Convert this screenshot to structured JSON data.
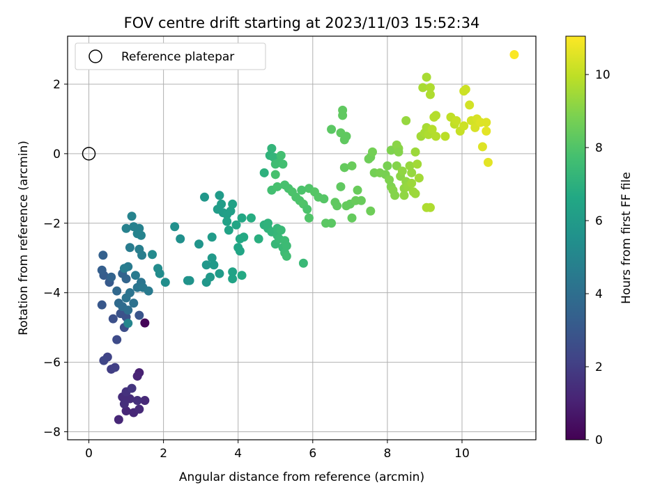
{
  "chart_data": {
    "type": "scatter",
    "title": "FOV centre drift starting at 2023/11/03 15:52:34",
    "xlabel": "Angular distance from reference (arcmin)",
    "ylabel": "Rotation from reference (arcmin)",
    "xlim": [
      -0.57,
      11.98
    ],
    "ylim": [
      -8.23,
      3.38
    ],
    "xticks": [
      0,
      2,
      4,
      6,
      8,
      10
    ],
    "yticks": [
      -8,
      -6,
      -4,
      -2,
      0,
      2
    ],
    "grid": true,
    "legend": {
      "placement": "upper-left",
      "entries": [
        "Reference platepar"
      ]
    },
    "reference_point": {
      "x": 0,
      "y": 0,
      "marker": "open-circle"
    },
    "colorbar": {
      "label": "Hours from first FF file",
      "colormap": "viridis",
      "range": [
        0,
        11.05
      ],
      "ticks": [
        0,
        2,
        4,
        6,
        8,
        10
      ]
    },
    "series": [
      {
        "colored_by": "hours",
        "points": [
          [
            1.5,
            -4.87,
            0.1
          ],
          [
            1.35,
            -6.3,
            1.0
          ],
          [
            1.3,
            -6.4,
            1.1
          ],
          [
            0.8,
            -7.65,
            1.2
          ],
          [
            1.0,
            -7.4,
            1.2
          ],
          [
            1.2,
            -7.45,
            1.2
          ],
          [
            1.35,
            -7.35,
            1.3
          ],
          [
            1.5,
            -7.1,
            1.3
          ],
          [
            0.9,
            -7.0,
            1.4
          ],
          [
            1.1,
            -7.05,
            1.4
          ],
          [
            1.3,
            -7.1,
            1.5
          ],
          [
            1.0,
            -6.85,
            1.6
          ],
          [
            1.15,
            -6.75,
            1.7
          ],
          [
            0.95,
            -7.2,
            1.5
          ],
          [
            0.6,
            -6.2,
            2.0
          ],
          [
            0.7,
            -6.15,
            2.1
          ],
          [
            0.5,
            -5.85,
            2.2
          ],
          [
            0.4,
            -5.95,
            2.3
          ],
          [
            0.75,
            -5.35,
            2.5
          ],
          [
            0.95,
            -5.0,
            2.6
          ],
          [
            0.65,
            -4.75,
            2.7
          ],
          [
            0.85,
            -4.6,
            2.8
          ],
          [
            1.0,
            -4.7,
            2.8
          ],
          [
            1.35,
            -4.65,
            2.9
          ],
          [
            0.35,
            -4.35,
            3.0
          ],
          [
            0.55,
            -3.7,
            3.1
          ],
          [
            0.4,
            -3.5,
            3.2
          ],
          [
            0.35,
            -3.35,
            3.3
          ],
          [
            0.38,
            -2.92,
            3.4
          ],
          [
            0.6,
            -3.55,
            3.5
          ],
          [
            0.9,
            -3.45,
            3.5
          ],
          [
            1.0,
            -3.6,
            3.6
          ],
          [
            0.75,
            -3.95,
            3.7
          ],
          [
            0.8,
            -4.3,
            3.8
          ],
          [
            0.9,
            -4.4,
            3.9
          ],
          [
            1.05,
            -4.5,
            4.0
          ],
          [
            1.2,
            -4.3,
            4.1
          ],
          [
            1.0,
            -4.15,
            4.2
          ],
          [
            1.1,
            -4.0,
            4.2
          ],
          [
            1.3,
            -3.85,
            4.3
          ],
          [
            1.4,
            -3.7,
            4.3
          ],
          [
            1.45,
            -3.85,
            4.4
          ],
          [
            1.6,
            -3.95,
            4.5
          ],
          [
            1.25,
            -3.5,
            4.5
          ],
          [
            1.05,
            -3.25,
            4.5
          ],
          [
            0.95,
            -3.3,
            4.6
          ],
          [
            1.1,
            -2.7,
            4.6
          ],
          [
            1.35,
            -2.75,
            4.7
          ],
          [
            1.42,
            -2.92,
            4.7
          ],
          [
            1.0,
            -2.15,
            4.8
          ],
          [
            1.2,
            -2.1,
            4.8
          ],
          [
            1.35,
            -2.15,
            4.8
          ],
          [
            1.4,
            -2.35,
            4.9
          ],
          [
            1.3,
            -2.3,
            4.9
          ],
          [
            1.15,
            -1.8,
            4.9
          ],
          [
            1.05,
            -4.88,
            5.0
          ],
          [
            1.7,
            -2.9,
            5.2
          ],
          [
            1.85,
            -3.3,
            5.3
          ],
          [
            1.9,
            -3.45,
            5.3
          ],
          [
            2.05,
            -3.7,
            5.4
          ],
          [
            2.3,
            -2.1,
            5.5
          ],
          [
            2.45,
            -2.45,
            5.5
          ],
          [
            2.65,
            -3.65,
            5.6
          ],
          [
            2.7,
            -3.65,
            5.6
          ],
          [
            2.95,
            -2.6,
            5.7
          ],
          [
            3.1,
            -1.25,
            5.8
          ],
          [
            3.15,
            -3.7,
            5.8
          ],
          [
            3.15,
            -3.2,
            5.8
          ],
          [
            3.25,
            -3.55,
            5.9
          ],
          [
            3.3,
            -3.0,
            5.9
          ],
          [
            3.35,
            -3.2,
            5.9
          ],
          [
            3.5,
            -3.45,
            6.0
          ],
          [
            3.3,
            -2.4,
            6.0
          ],
          [
            3.5,
            -1.2,
            6.0
          ],
          [
            3.55,
            -1.45,
            6.1
          ],
          [
            3.45,
            -1.6,
            6.1
          ],
          [
            3.6,
            -1.7,
            6.1
          ],
          [
            3.7,
            -1.75,
            6.2
          ],
          [
            3.8,
            -1.65,
            6.2
          ],
          [
            3.85,
            -1.45,
            6.3
          ],
          [
            3.7,
            -1.95,
            6.3
          ],
          [
            3.75,
            -2.2,
            6.4
          ],
          [
            3.85,
            -3.4,
            6.4
          ],
          [
            3.85,
            -3.6,
            6.4
          ],
          [
            3.95,
            -2.05,
            6.5
          ],
          [
            4.0,
            -2.7,
            6.5
          ],
          [
            4.05,
            -2.8,
            6.5
          ],
          [
            4.1,
            -1.85,
            6.6
          ],
          [
            4.05,
            -2.45,
            6.6
          ],
          [
            4.15,
            -2.4,
            6.7
          ],
          [
            4.1,
            -3.5,
            6.7
          ],
          [
            4.35,
            -1.85,
            6.8
          ],
          [
            4.55,
            -2.45,
            6.9
          ],
          [
            4.7,
            -2.05,
            7.0
          ],
          [
            4.7,
            -0.55,
            7.0
          ],
          [
            4.8,
            -2.0,
            7.1
          ],
          [
            4.8,
            -2.15,
            7.1
          ],
          [
            4.85,
            -0.05,
            7.1
          ],
          [
            4.9,
            0.15,
            7.2
          ],
          [
            4.95,
            -0.1,
            7.2
          ],
          [
            4.9,
            -2.25,
            7.2
          ],
          [
            5.0,
            -2.6,
            7.3
          ],
          [
            5.05,
            -2.35,
            7.3
          ],
          [
            5.05,
            -2.15,
            7.3
          ],
          [
            5.1,
            -2.45,
            7.4
          ],
          [
            5.15,
            -2.2,
            7.4
          ],
          [
            5.2,
            -2.7,
            7.4
          ],
          [
            5.25,
            -2.5,
            7.5
          ],
          [
            5.25,
            -2.85,
            7.5
          ],
          [
            5.3,
            -2.65,
            7.5
          ],
          [
            5.3,
            -2.95,
            7.6
          ],
          [
            5.0,
            -0.3,
            7.6
          ],
          [
            5.1,
            -0.25,
            7.6
          ],
          [
            5.15,
            -0.05,
            7.7
          ],
          [
            5.2,
            -0.3,
            7.7
          ],
          [
            4.9,
            -1.05,
            7.7
          ],
          [
            5.0,
            -0.6,
            7.8
          ],
          [
            5.05,
            -0.95,
            7.8
          ],
          [
            5.25,
            -0.9,
            7.8
          ],
          [
            5.35,
            -1.0,
            7.8
          ],
          [
            5.45,
            -1.1,
            7.9
          ],
          [
            5.55,
            -1.25,
            7.9
          ],
          [
            5.65,
            -1.35,
            7.9
          ],
          [
            5.75,
            -1.45,
            8.0
          ],
          [
            5.85,
            -1.6,
            7.9
          ],
          [
            5.9,
            -1.0,
            8.0
          ],
          [
            5.7,
            -1.05,
            7.9
          ],
          [
            5.75,
            -3.15,
            7.4
          ],
          [
            5.9,
            -1.85,
            8.0
          ],
          [
            6.05,
            -1.1,
            8.1
          ],
          [
            6.15,
            -1.25,
            8.1
          ],
          [
            6.3,
            -1.3,
            8.1
          ],
          [
            6.35,
            -2.0,
            8.2
          ],
          [
            6.5,
            -2.0,
            8.2
          ],
          [
            6.5,
            0.7,
            8.2
          ],
          [
            6.6,
            -1.4,
            8.3
          ],
          [
            6.65,
            -1.5,
            8.3
          ],
          [
            6.75,
            -0.95,
            8.3
          ],
          [
            6.75,
            0.6,
            8.3
          ],
          [
            6.8,
            1.1,
            8.3
          ],
          [
            6.8,
            1.25,
            8.3
          ],
          [
            6.85,
            0.4,
            8.3
          ],
          [
            6.9,
            0.5,
            8.3
          ],
          [
            6.85,
            -0.4,
            8.4
          ],
          [
            6.9,
            -1.5,
            8.4
          ],
          [
            7.0,
            -1.45,
            8.4
          ],
          [
            7.05,
            -1.85,
            8.4
          ],
          [
            7.05,
            -0.35,
            8.5
          ],
          [
            7.15,
            -1.35,
            8.5
          ],
          [
            7.2,
            -1.05,
            8.5
          ],
          [
            7.3,
            -1.35,
            8.5
          ],
          [
            7.5,
            -0.15,
            8.6
          ],
          [
            7.55,
            -0.1,
            8.6
          ],
          [
            7.55,
            -1.65,
            8.6
          ],
          [
            7.6,
            0.05,
            8.7
          ],
          [
            7.65,
            -0.55,
            8.7
          ],
          [
            7.8,
            -0.55,
            8.8
          ],
          [
            7.95,
            -0.6,
            8.8
          ],
          [
            8.05,
            -0.75,
            8.9
          ],
          [
            8.1,
            -0.95,
            8.9
          ],
          [
            8.1,
            0.1,
            8.9
          ],
          [
            8.15,
            -1.05,
            9.0
          ],
          [
            8.2,
            -1.2,
            9.0
          ],
          [
            8.25,
            -0.35,
            9.0
          ],
          [
            8.25,
            0.25,
            9.1
          ],
          [
            8.3,
            0.15,
            9.1
          ],
          [
            8.35,
            -0.65,
            9.1
          ],
          [
            8.4,
            -0.5,
            9.2
          ],
          [
            8.45,
            -1.0,
            9.2
          ],
          [
            8.45,
            -1.2,
            9.2
          ],
          [
            8.5,
            -0.8,
            9.2
          ],
          [
            8.5,
            0.95,
            9.3
          ],
          [
            8.55,
            -0.95,
            9.3
          ],
          [
            8.6,
            -0.35,
            9.3
          ],
          [
            8.65,
            -0.55,
            9.3
          ],
          [
            8.65,
            -0.85,
            9.4
          ],
          [
            8.7,
            -1.1,
            9.4
          ],
          [
            8.75,
            -1.15,
            9.4
          ],
          [
            8.75,
            0.05,
            9.4
          ],
          [
            8.8,
            -0.3,
            9.5
          ],
          [
            8.85,
            -0.7,
            9.5
          ],
          [
            8.9,
            0.5,
            9.5
          ],
          [
            8.95,
            1.9,
            9.6
          ],
          [
            9.0,
            0.6,
            9.6
          ],
          [
            9.05,
            0.75,
            9.6
          ],
          [
            9.05,
            2.2,
            9.6
          ],
          [
            9.1,
            0.55,
            9.7
          ],
          [
            9.15,
            1.9,
            9.7
          ],
          [
            9.15,
            1.7,
            9.7
          ],
          [
            9.15,
            -1.55,
            9.7
          ],
          [
            9.2,
            0.7,
            9.8
          ],
          [
            9.25,
            1.05,
            9.8
          ],
          [
            9.3,
            0.5,
            9.8
          ],
          [
            9.3,
            1.1,
            9.8
          ],
          [
            9.55,
            0.5,
            9.9
          ],
          [
            9.7,
            1.05,
            10.0
          ],
          [
            9.8,
            0.85,
            10.0
          ],
          [
            9.85,
            0.95,
            10.1
          ],
          [
            9.95,
            0.65,
            10.1
          ],
          [
            10.05,
            0.8,
            10.2
          ],
          [
            10.05,
            1.8,
            10.2
          ],
          [
            10.1,
            1.85,
            10.2
          ],
          [
            10.2,
            1.4,
            10.3
          ],
          [
            10.25,
            0.95,
            10.3
          ],
          [
            10.35,
            0.75,
            10.4
          ],
          [
            10.4,
            1.0,
            10.4
          ],
          [
            10.5,
            0.9,
            10.5
          ],
          [
            10.55,
            0.2,
            10.5
          ],
          [
            10.65,
            0.9,
            10.5
          ],
          [
            10.65,
            0.65,
            10.6
          ],
          [
            10.7,
            -0.25,
            10.6
          ],
          [
            11.4,
            2.85,
            11.0
          ],
          [
            9.05,
            -1.55,
            9.7
          ],
          [
            8.3,
            0.05,
            9.0
          ],
          [
            8.0,
            -0.35,
            8.8
          ]
        ]
      }
    ]
  }
}
